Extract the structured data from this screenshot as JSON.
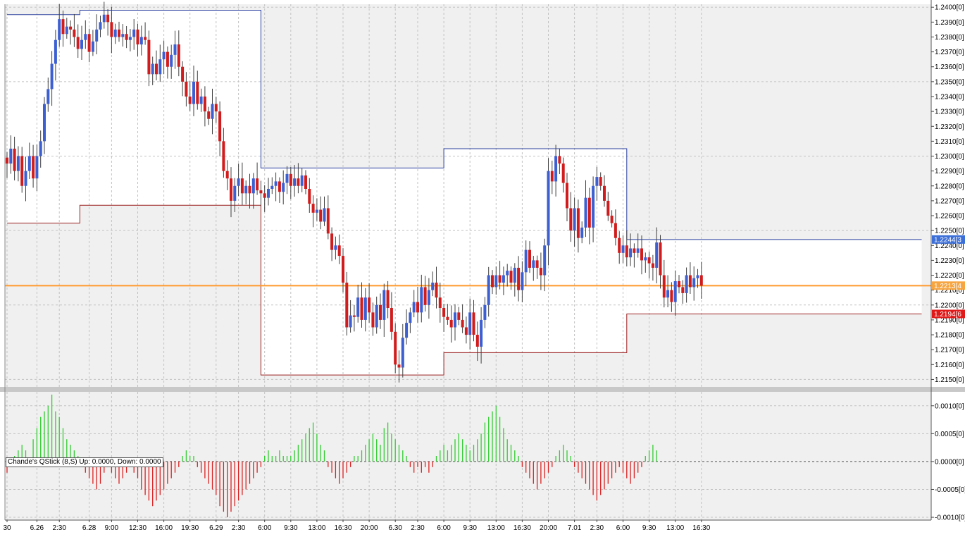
{
  "indicator_label": "Chande's QStick (8,S)  Up: 0.0000, Down: 0.0000",
  "colors": {
    "bull": "#3c5fd1",
    "bear": "#d01c1c",
    "qstick_up": "#32cd32",
    "qstick_down": "#dc2020",
    "upper_band": "#2a3f9e",
    "lower_band": "#9a1e1e",
    "mid_line": "#ff9a2e"
  },
  "chart_data": [
    {
      "type": "candlestick",
      "y_axis": {
        "range": [
          1.2145,
          1.2402
        ],
        "ticks": [
          "1.2400[0]",
          "1.2390[0]",
          "1.2380[0]",
          "1.2370[0]",
          "1.2360[0]",
          "1.2350[0]",
          "1.2340[0]",
          "1.2330[0]",
          "1.2320[0]",
          "1.2310[0]",
          "1.2300[0]",
          "1.2290[0]",
          "1.2280[0]",
          "1.2270[0]",
          "1.2260[0]",
          "1.2250[0]",
          "1.2240[0]",
          "1.2230[0]",
          "1.2220[0]",
          "1.2210[0]",
          "1.2200[0]",
          "1.2190[0]",
          "1.2180[0]",
          "1.2170[0]",
          "1.2160[0]",
          "1.2150[0]"
        ],
        "tick_values": [
          1.24,
          1.239,
          1.238,
          1.237,
          1.236,
          1.235,
          1.234,
          1.233,
          1.232,
          1.231,
          1.23,
          1.229,
          1.228,
          1.227,
          1.226,
          1.225,
          1.224,
          1.223,
          1.222,
          1.221,
          1.22,
          1.219,
          1.218,
          1.217,
          1.216,
          1.215
        ]
      },
      "x_axis": {
        "ticks": [
          "30",
          "6.26",
          "2:30",
          "6.28",
          "9:00",
          "12:30",
          "16:00",
          "19:30",
          "6.29",
          "2:30",
          "6:00",
          "9:30",
          "13:00",
          "16:30",
          "20:00",
          "6.30",
          "2:30",
          "6:00",
          "9:30",
          "13:00",
          "16:30",
          "20:00",
          "7.01",
          "2:30",
          "6:00",
          "9:30",
          "13:00",
          "16:30"
        ],
        "tick_bars": [
          0,
          8,
          14,
          22,
          28,
          35,
          42,
          49,
          56,
          62,
          69,
          76,
          83,
          90,
          97,
          104,
          110,
          117,
          124,
          131,
          138,
          145,
          152,
          158,
          165,
          172,
          179,
          186
        ]
      },
      "price_tags": [
        {
          "label": "1.2244[3",
          "value": 1.2244,
          "color": "#3c6fd8"
        },
        {
          "label": "1.2213[4",
          "value": 1.2213,
          "color": "#f7a540"
        },
        {
          "label": "1.2194[6",
          "value": 1.2194,
          "color": "#e01818"
        }
      ],
      "mid_line": 1.2213,
      "channel": [
        {
          "from": 0,
          "to": 19.5,
          "upper": 1.2395,
          "lower": 1.2255
        },
        {
          "from": 19.5,
          "to": 68,
          "upper": 1.2398,
          "lower": 1.2267
        },
        {
          "from": 68,
          "to": 117,
          "upper": 1.2292,
          "lower": 1.2153
        },
        {
          "from": 117,
          "to": 166,
          "upper": 1.2305,
          "lower": 1.2168
        },
        {
          "from": 166,
          "to": 245,
          "upper": 1.2244,
          "lower": 1.2194
        }
      ],
      "closes": [
        1.2295,
        1.2305,
        1.229,
        1.23,
        1.228,
        1.229,
        1.23,
        1.2285,
        1.23,
        1.231,
        1.2335,
        1.2345,
        1.2362,
        1.2378,
        1.2392,
        1.2382,
        1.2387,
        1.2385,
        1.238,
        1.2372,
        1.2378,
        1.2382,
        1.237,
        1.2377,
        1.2385,
        1.239,
        1.2395,
        1.239,
        1.238,
        1.2385,
        1.238,
        1.2382,
        1.2378,
        1.238,
        1.2385,
        1.2375,
        1.238,
        1.2378,
        1.2355,
        1.2362,
        1.2355,
        1.2365,
        1.237,
        1.236,
        1.2368,
        1.2375,
        1.236,
        1.235,
        1.234,
        1.2335,
        1.235,
        1.2335,
        1.234,
        1.233,
        1.2325,
        1.2335,
        1.233,
        1.231,
        1.229,
        1.2285,
        1.227,
        1.228,
        1.2285,
        1.2275,
        1.228,
        1.2275,
        1.2285,
        1.2277,
        1.2275,
        1.2272,
        1.2278,
        1.228,
        1.2283,
        1.2276,
        1.2282,
        1.2288,
        1.228,
        1.2285,
        1.228,
        1.2287,
        1.2278,
        1.2268,
        1.2262,
        1.2264,
        1.2256,
        1.2265,
        1.2248,
        1.2237,
        1.224,
        1.2233,
        1.2215,
        1.2185,
        1.2193,
        1.2192,
        1.2205,
        1.219,
        1.2205,
        1.2195,
        1.2185,
        1.22,
        1.219,
        1.221,
        1.2198,
        1.2182,
        1.216,
        1.2158,
        1.2178,
        1.2188,
        1.2195,
        1.2202,
        1.2195,
        1.2212,
        1.22,
        1.221,
        1.2215,
        1.2205,
        1.2198,
        1.2192,
        1.219,
        1.2185,
        1.2195,
        1.219,
        1.2185,
        1.218,
        1.2195,
        1.218,
        1.2172,
        1.219,
        1.22,
        1.222,
        1.2212,
        1.222,
        1.2215,
        1.222,
        1.2223,
        1.2215,
        1.2225,
        1.221,
        1.2222,
        1.2237,
        1.2225,
        1.223,
        1.2225,
        1.222,
        1.224,
        1.229,
        1.2283,
        1.23,
        1.2295,
        1.2282,
        1.2265,
        1.225,
        1.2265,
        1.2245,
        1.2252,
        1.2272,
        1.2252,
        1.228,
        1.2286,
        1.228,
        1.227,
        1.226,
        1.2255,
        1.2245,
        1.2235,
        1.224,
        1.2232,
        1.2238,
        1.2235,
        1.2238,
        1.223,
        1.2232,
        1.2228,
        1.2225,
        1.2242,
        1.222,
        1.2205,
        1.221,
        1.2202,
        1.2216,
        1.2212,
        1.2208,
        1.222,
        1.2212,
        1.2218,
        1.222,
        1.2213
      ]
    },
    {
      "type": "bar",
      "title": "Chande's QStick (8,S)",
      "y_axis": {
        "range": [
          -0.00105,
          0.00125
        ],
        "ticks": [
          "0.0010[0]",
          "0.0005[0]",
          "0.0000[0]",
          "-0.0005[0]",
          "-0.0010[0]"
        ],
        "tick_values": [
          0.001,
          0.0005,
          0.0,
          -0.0005,
          -0.001
        ]
      },
      "values": [
        -0.0002,
        -0.0001,
        0.0001,
        0.0002,
        0.0003,
        0.0002,
        -0.0001,
        0.0004,
        0.0006,
        0.0008,
        0.0009,
        0.001,
        0.0012,
        0.0009,
        0.0008,
        0.0006,
        0.0004,
        0.0003,
        0.0002,
        0.0001,
        -0.0001,
        -0.0002,
        -0.0003,
        -0.0004,
        -0.0005,
        -0.0004,
        -0.0002,
        -0.0001,
        -0.0002,
        -0.0003,
        -0.0004,
        -0.0003,
        -0.0002,
        -0.0001,
        -0.0002,
        -0.0003,
        -0.0005,
        -0.0006,
        -0.0007,
        -0.0008,
        -0.0007,
        -0.0006,
        -0.0005,
        -0.0004,
        -0.0003,
        -0.0002,
        -0.0001,
        0.0001,
        0.0002,
        0.0001,
        0.0001,
        -0.0001,
        -0.0002,
        -0.0003,
        -0.0004,
        -0.0005,
        -0.0006,
        -0.0008,
        -0.0009,
        -0.001,
        -0.0009,
        -0.0008,
        -0.0007,
        -0.0006,
        -0.0005,
        -0.0004,
        -0.0003,
        -0.0002,
        -0.0001,
        0.0001,
        0.0002,
        0.0001,
        0.0001,
        0.0002,
        0.0001,
        0.0001,
        0.0001,
        0.0002,
        0.0003,
        0.0004,
        0.0005,
        0.0006,
        0.0007,
        0.0005,
        0.0003,
        0.0002,
        -0.0001,
        -0.0002,
        -0.0003,
        -0.0004,
        -0.0003,
        -0.0002,
        -0.0001,
        0.0001,
        0.0001,
        0.0002,
        0.0003,
        0.0004,
        0.0005,
        0.0004,
        0.0003,
        0.0006,
        0.0007,
        0.0005,
        0.0004,
        0.0003,
        0.0002,
        0.0001,
        -0.0001,
        -0.0002,
        -0.0001,
        -0.0002,
        -0.0001,
        -0.0002,
        -0.0001,
        0.0001,
        0.0002,
        0.0003,
        0.0002,
        0.0003,
        0.0004,
        0.0005,
        0.0004,
        0.0003,
        0.0002,
        0.0003,
        0.0004,
        0.0005,
        0.0007,
        0.0008,
        0.0009,
        0.001,
        0.0008,
        0.0006,
        0.0004,
        0.0003,
        0.0002,
        0.0001,
        -0.0001,
        -0.0002,
        -0.0003,
        -0.0004,
        -0.0005,
        -0.0004,
        -0.0003,
        -0.0002,
        -0.0001,
        0.0001,
        0.0002,
        0.0003,
        0.0002,
        0.0001,
        -0.0001,
        -0.0002,
        -0.0003,
        -0.0004,
        -0.0005,
        -0.0006,
        -0.0007,
        -0.0006,
        -0.0005,
        -0.0004,
        -0.0003,
        -0.0002,
        -0.0001,
        -0.0002,
        -0.0003,
        -0.0004,
        -0.0003,
        -0.0002,
        -0.0001,
        0.0001,
        0.0002,
        0.0003,
        0.0002
      ]
    }
  ]
}
